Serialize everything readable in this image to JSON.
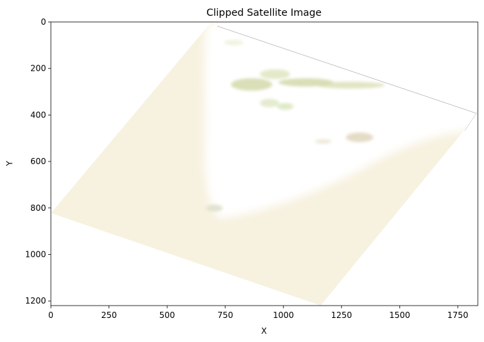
{
  "chart_data": {
    "type": "image",
    "title": "Clipped Satellite Image",
    "xlabel": "X",
    "ylabel": "Y",
    "xlim": [
      0,
      1836
    ],
    "ylim": [
      1220,
      0
    ],
    "x_ticks": [
      0,
      250,
      500,
      750,
      1000,
      1250,
      1500,
      1750
    ],
    "y_ticks": [
      0,
      200,
      400,
      600,
      800,
      1000,
      1200
    ],
    "image_footprint": [
      [
        690,
        0
      ],
      [
        1836,
        395
      ],
      [
        1160,
        1220
      ],
      [
        0,
        822
      ]
    ],
    "colors": {
      "land_fill": "#f7f1df",
      "bright_area": "#ffffff",
      "vegetation": "#cfd9a8",
      "bare_patch": "#e6dcc7",
      "edge_line": "#8a8a8a"
    }
  }
}
